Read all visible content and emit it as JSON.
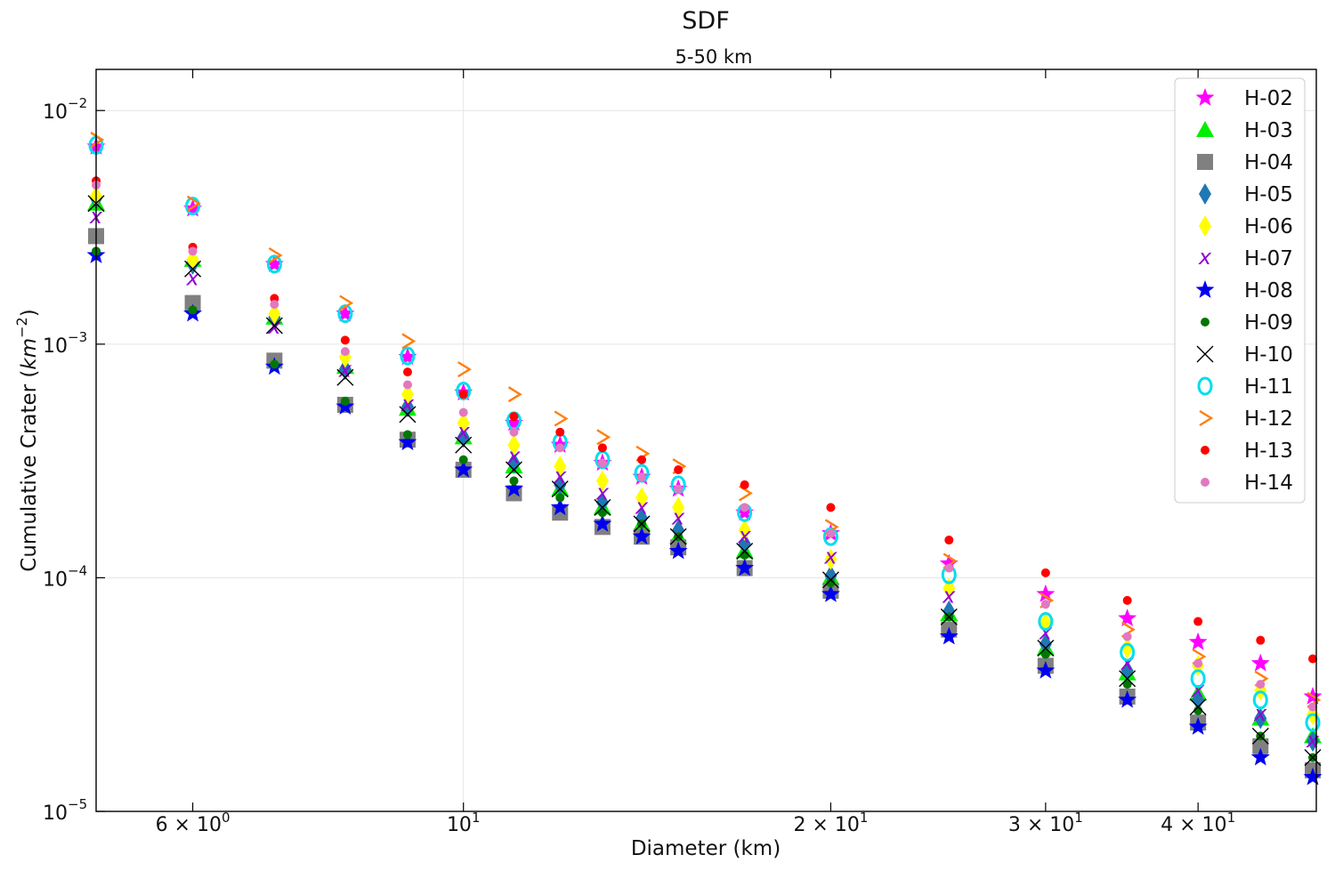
{
  "chart_data": {
    "type": "scatter",
    "title": "SDF",
    "subtitle": "5-50 km",
    "xlabel": "Diameter (km)",
    "ylabel": "Cumulative Crater (km⁻²)",
    "ylabel_parts": {
      "main": "Cumulative Crater (",
      "unit": "km",
      "exp": "−2",
      "close": ")"
    },
    "x_scale": "log",
    "y_scale": "log",
    "xlim": [
      5,
      50
    ],
    "ylim": [
      1e-05,
      0.015
    ],
    "grid": true,
    "legend_position": "top-right",
    "x_ticks": [
      {
        "value": 6,
        "base": "6 × 10",
        "exp": "0"
      },
      {
        "value": 10,
        "base": "10",
        "exp": "1"
      },
      {
        "value": 20,
        "base": "2 × 10",
        "exp": "1"
      },
      {
        "value": 30,
        "base": "3 × 10",
        "exp": "1"
      },
      {
        "value": 40,
        "base": "4 × 10",
        "exp": "1"
      }
    ],
    "y_ticks": [
      {
        "value": 0.01,
        "base": "10",
        "exp": "−2"
      },
      {
        "value": 0.001,
        "base": "10",
        "exp": "−3"
      },
      {
        "value": 0.0001,
        "base": "10",
        "exp": "−4"
      },
      {
        "value": 1e-05,
        "base": "10",
        "exp": "−5"
      }
    ],
    "x": [
      5,
      6,
      7,
      8,
      9,
      10,
      11,
      12,
      13,
      14,
      15,
      17,
      20,
      25,
      30,
      35,
      40,
      45,
      50
    ],
    "series": [
      {
        "name": "H-02",
        "marker": "star",
        "color": "#ff00ff",
        "values": [
          0.007,
          0.0038,
          0.0022,
          0.00135,
          0.00088,
          0.00062,
          0.00046,
          0.00037,
          0.00031,
          0.00027,
          0.00024,
          0.00019,
          0.000155,
          0.000115,
          8.5e-05,
          6.7e-05,
          5.3e-05,
          4.3e-05,
          3.1e-05
        ]
      },
      {
        "name": "H-03",
        "marker": "triangle",
        "color": "#00ee00",
        "values": [
          0.004,
          0.0023,
          0.0013,
          0.0008,
          0.00053,
          0.0004,
          0.0003,
          0.00024,
          0.0002,
          0.00017,
          0.00015,
          0.00013,
          0.0001,
          7e-05,
          5e-05,
          3.9e-05,
          3.2e-05,
          2.5e-05,
          2.1e-05
        ]
      },
      {
        "name": "H-04",
        "marker": "square",
        "color": "#808080",
        "values": [
          0.0029,
          0.0015,
          0.00085,
          0.00055,
          0.00039,
          0.00029,
          0.00023,
          0.00019,
          0.000165,
          0.00015,
          0.000135,
          0.00011,
          8.8e-05,
          6e-05,
          4.2e-05,
          3.1e-05,
          2.4e-05,
          1.9e-05,
          1.5e-05
        ]
      },
      {
        "name": "H-05",
        "marker": "diamond",
        "color": "#1f77b4",
        "values": [
          0.0042,
          0.0022,
          0.0013,
          0.00078,
          0.00054,
          0.0004,
          0.00031,
          0.00025,
          0.00021,
          0.00018,
          0.00016,
          0.00014,
          0.000102,
          7.2e-05,
          5.2e-05,
          4e-05,
          3e-05,
          2.5e-05,
          2e-05
        ]
      },
      {
        "name": "H-06",
        "marker": "diamond",
        "color": "#ffff00",
        "values": [
          0.0043,
          0.0023,
          0.00135,
          0.00088,
          0.00061,
          0.00046,
          0.00037,
          0.0003,
          0.00026,
          0.00022,
          0.0002,
          0.00016,
          0.00012,
          9e-05,
          6.4e-05,
          5e-05,
          4.2e-05,
          3.3e-05,
          2.6e-05
        ]
      },
      {
        "name": "H-07",
        "marker": "x",
        "color": "#9400d3",
        "values": [
          0.0035,
          0.0019,
          0.00118,
          0.00077,
          0.00055,
          0.00042,
          0.00033,
          0.00027,
          0.00023,
          0.0002,
          0.00018,
          0.00015,
          0.000122,
          8.3e-05,
          5.8e-05,
          4.3e-05,
          3.3e-05,
          2.6e-05,
          2e-05
        ]
      },
      {
        "name": "H-08",
        "marker": "star",
        "color": "#0000ee",
        "values": [
          0.0024,
          0.00135,
          0.0008,
          0.00054,
          0.00038,
          0.00029,
          0.00024,
          0.0002,
          0.00017,
          0.00015,
          0.00013,
          0.00011,
          8.5e-05,
          5.6e-05,
          4e-05,
          3e-05,
          2.3e-05,
          1.7e-05,
          1.4e-05
        ]
      },
      {
        "name": "H-09",
        "marker": "dot",
        "color": "#007700",
        "values": [
          0.0025,
          0.0014,
          0.00082,
          0.00057,
          0.00041,
          0.00032,
          0.00026,
          0.00022,
          0.00019,
          0.00017,
          0.00015,
          0.000125,
          9.5e-05,
          6.8e-05,
          4.7e-05,
          3.5e-05,
          2.7e-05,
          2.1e-05,
          1.7e-05
        ]
      },
      {
        "name": "H-10",
        "marker": "cross",
        "color": "#000000",
        "values": [
          0.004,
          0.0021,
          0.0012,
          0.00072,
          0.0005,
          0.00037,
          0.00029,
          0.00024,
          0.0002,
          0.00017,
          0.00015,
          0.00013,
          9.8e-05,
          6.8e-05,
          5e-05,
          3.7e-05,
          2.8e-05,
          2.1e-05,
          1.7e-05
        ]
      },
      {
        "name": "H-11",
        "marker": "circle",
        "color": "#00ddee",
        "values": [
          0.0071,
          0.0039,
          0.0022,
          0.00135,
          0.00089,
          0.00063,
          0.00047,
          0.00038,
          0.00032,
          0.00028,
          0.00025,
          0.00019,
          0.00015,
          0.000103,
          6.5e-05,
          4.8e-05,
          3.7e-05,
          3e-05,
          2.4e-05
        ]
      },
      {
        "name": "H-12",
        "marker": "gt",
        "color": "#ff7f0e",
        "values": [
          0.0075,
          0.004,
          0.0024,
          0.0015,
          0.00103,
          0.00078,
          0.00061,
          0.00048,
          0.0004,
          0.00034,
          0.0003,
          0.00023,
          0.000165,
          0.000118,
          8e-05,
          6e-05,
          4.6e-05,
          3.7e-05,
          3e-05
        ]
      },
      {
        "name": "H-13",
        "marker": "dot",
        "color": "#ff0000",
        "values": [
          0.005,
          0.0026,
          0.00157,
          0.00104,
          0.00076,
          0.00061,
          0.00049,
          0.00042,
          0.00036,
          0.00032,
          0.00029,
          0.00025,
          0.0002,
          0.000145,
          0.000105,
          8e-05,
          6.5e-05,
          5.4e-05,
          4.5e-05
        ]
      },
      {
        "name": "H-14",
        "marker": "dot",
        "color": "#e377c2",
        "values": [
          0.0048,
          0.0025,
          0.00148,
          0.00093,
          0.00067,
          0.00051,
          0.00042,
          0.00036,
          0.00031,
          0.00027,
          0.00024,
          0.0002,
          0.000155,
          0.00011,
          7.7e-05,
          5.6e-05,
          4.3e-05,
          3.5e-05,
          2.8e-05
        ]
      }
    ]
  }
}
